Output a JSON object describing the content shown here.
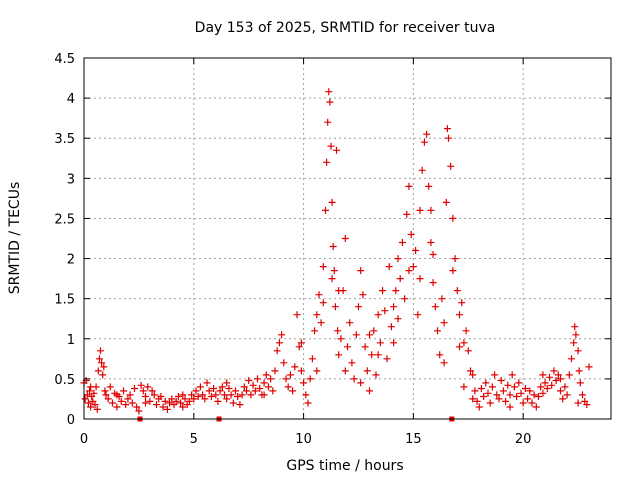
{
  "chart_data": {
    "type": "scatter",
    "title": "Day 153 of 2025, SRMTID for receiver tuva",
    "xlabel": "GPS time / hours",
    "ylabel": "SRMTID / TECUs",
    "xlim": [
      0,
      24
    ],
    "ylim": [
      0,
      4.5
    ],
    "x_ticks": [
      0,
      5,
      10,
      15,
      20
    ],
    "x_tick_labels": [
      "0",
      "5",
      "10",
      "15",
      "20"
    ],
    "y_ticks": [
      0,
      0.5,
      1,
      1.5,
      2,
      2.5,
      3,
      3.5,
      4,
      4.5
    ],
    "y_tick_labels": [
      "0",
      "0.5",
      "1",
      "1.5",
      "2",
      "2.5",
      "3",
      "3.5",
      "4",
      "4.5"
    ],
    "grid": true,
    "marker": "+",
    "color": "#e00000",
    "series": [
      {
        "name": "SRMTID",
        "points": [
          [
            0.0,
            0.45
          ],
          [
            0.05,
            0.25
          ],
          [
            0.1,
            0.48
          ],
          [
            0.15,
            0.3
          ],
          [
            0.2,
            0.2
          ],
          [
            0.25,
            0.35
          ],
          [
            0.3,
            0.15
          ],
          [
            0.35,
            0.28
          ],
          [
            0.4,
            0.22
          ],
          [
            0.45,
            0.32
          ],
          [
            0.5,
            0.18
          ],
          [
            0.55,
            0.4
          ],
          [
            0.6,
            0.12
          ],
          [
            0.65,
            0.6
          ],
          [
            0.7,
            0.75
          ],
          [
            0.75,
            0.85
          ],
          [
            0.8,
            0.7
          ],
          [
            0.85,
            0.55
          ],
          [
            0.9,
            0.65
          ],
          [
            0.95,
            0.35
          ],
          [
            1.0,
            0.3
          ],
          [
            1.1,
            0.25
          ],
          [
            1.2,
            0.4
          ],
          [
            1.3,
            0.2
          ],
          [
            1.4,
            0.32
          ],
          [
            1.5,
            0.15
          ],
          [
            1.6,
            0.28
          ],
          [
            1.7,
            0.22
          ],
          [
            1.8,
            0.35
          ],
          [
            1.9,
            0.18
          ],
          [
            2.0,
            0.25
          ],
          [
            2.1,
            0.3
          ],
          [
            2.2,
            0.2
          ],
          [
            2.3,
            0.38
          ],
          [
            2.4,
            0.15
          ],
          [
            2.5,
            0.1
          ],
          [
            2.6,
            0.42
          ],
          [
            2.7,
            0.35
          ],
          [
            2.8,
            0.28
          ],
          [
            2.9,
            0.4
          ],
          [
            3.0,
            0.22
          ],
          [
            3.1,
            0.35
          ],
          [
            3.2,
            0.3
          ],
          [
            3.3,
            0.18
          ],
          [
            3.4,
            0.25
          ],
          [
            3.5,
            0.28
          ],
          [
            3.6,
            0.15
          ],
          [
            3.7,
            0.22
          ],
          [
            3.8,
            0.12
          ],
          [
            3.9,
            0.2
          ],
          [
            4.0,
            0.25
          ],
          [
            4.1,
            0.18
          ],
          [
            4.2,
            0.22
          ],
          [
            4.3,
            0.28
          ],
          [
            4.4,
            0.2
          ],
          [
            4.5,
            0.3
          ],
          [
            4.6,
            0.25
          ],
          [
            4.7,
            0.18
          ],
          [
            4.8,
            0.22
          ],
          [
            4.9,
            0.3
          ],
          [
            5.0,
            0.25
          ],
          [
            5.1,
            0.35
          ],
          [
            5.2,
            0.28
          ],
          [
            5.3,
            0.4
          ],
          [
            5.4,
            0.3
          ],
          [
            5.5,
            0.25
          ],
          [
            5.6,
            0.45
          ],
          [
            5.7,
            0.35
          ],
          [
            5.8,
            0.28
          ],
          [
            5.9,
            0.38
          ],
          [
            6.0,
            0.3
          ],
          [
            6.1,
            0.22
          ],
          [
            6.2,
            0.35
          ],
          [
            6.3,
            0.4
          ],
          [
            6.4,
            0.3
          ],
          [
            6.5,
            0.25
          ],
          [
            6.6,
            0.38
          ],
          [
            6.7,
            0.3
          ],
          [
            6.8,
            0.2
          ],
          [
            6.9,
            0.35
          ],
          [
            7.0,
            0.28
          ],
          [
            7.1,
            0.18
          ],
          [
            7.2,
            0.3
          ],
          [
            7.3,
            0.4
          ],
          [
            7.4,
            0.35
          ],
          [
            7.5,
            0.48
          ],
          [
            7.6,
            0.3
          ],
          [
            7.7,
            0.42
          ],
          [
            7.8,
            0.35
          ],
          [
            7.9,
            0.5
          ],
          [
            8.0,
            0.38
          ],
          [
            8.1,
            0.3
          ],
          [
            8.2,
            0.45
          ],
          [
            8.3,
            0.55
          ],
          [
            8.4,
            0.4
          ],
          [
            8.5,
            0.5
          ],
          [
            8.6,
            0.35
          ],
          [
            8.7,
            0.6
          ],
          [
            8.8,
            0.85
          ],
          [
            8.9,
            0.95
          ],
          [
            9.0,
            1.05
          ],
          [
            9.1,
            0.7
          ],
          [
            9.2,
            0.5
          ],
          [
            9.3,
            0.4
          ],
          [
            9.4,
            0.55
          ],
          [
            9.5,
            0.35
          ],
          [
            9.6,
            0.65
          ],
          [
            9.7,
            1.3
          ],
          [
            9.8,
            0.9
          ],
          [
            9.9,
            0.6
          ],
          [
            10.0,
            0.45
          ],
          [
            10.1,
            0.3
          ],
          [
            10.2,
            0.2
          ],
          [
            10.3,
            0.5
          ],
          [
            10.4,
            0.75
          ],
          [
            10.5,
            1.1
          ],
          [
            10.6,
            1.3
          ],
          [
            10.7,
            1.55
          ],
          [
            10.8,
            1.2
          ],
          [
            10.9,
            1.9
          ],
          [
            11.0,
            2.6
          ],
          [
            11.05,
            3.2
          ],
          [
            11.1,
            3.7
          ],
          [
            11.15,
            4.08
          ],
          [
            11.2,
            3.95
          ],
          [
            11.25,
            3.4
          ],
          [
            11.3,
            2.7
          ],
          [
            11.35,
            2.15
          ],
          [
            11.4,
            1.85
          ],
          [
            11.45,
            1.4
          ],
          [
            11.5,
            3.35
          ],
          [
            11.55,
            1.1
          ],
          [
            11.6,
            0.8
          ],
          [
            11.7,
            1.0
          ],
          [
            11.8,
            1.6
          ],
          [
            11.9,
            2.25
          ],
          [
            12.0,
            0.9
          ],
          [
            12.1,
            1.2
          ],
          [
            12.2,
            0.7
          ],
          [
            12.3,
            0.5
          ],
          [
            12.4,
            1.05
          ],
          [
            12.5,
            1.4
          ],
          [
            12.6,
            1.85
          ],
          [
            12.7,
            1.55
          ],
          [
            12.8,
            0.9
          ],
          [
            12.9,
            0.6
          ],
          [
            13.0,
            0.35
          ],
          [
            13.1,
            0.8
          ],
          [
            13.2,
            1.1
          ],
          [
            13.3,
            0.55
          ],
          [
            13.4,
            1.3
          ],
          [
            13.5,
            0.95
          ],
          [
            13.6,
            1.6
          ],
          [
            13.7,
            1.35
          ],
          [
            13.8,
            0.75
          ],
          [
            13.9,
            1.9
          ],
          [
            14.0,
            1.15
          ],
          [
            14.1,
            1.4
          ],
          [
            14.2,
            1.6
          ],
          [
            14.3,
            2.0
          ],
          [
            14.4,
            1.75
          ],
          [
            14.5,
            2.2
          ],
          [
            14.6,
            1.5
          ],
          [
            14.7,
            2.55
          ],
          [
            14.8,
            2.9
          ],
          [
            14.9,
            2.3
          ],
          [
            15.0,
            1.9
          ],
          [
            15.1,
            2.1
          ],
          [
            15.2,
            1.3
          ],
          [
            15.3,
            2.6
          ],
          [
            15.4,
            3.1
          ],
          [
            15.5,
            3.45
          ],
          [
            15.6,
            3.55
          ],
          [
            15.7,
            2.9
          ],
          [
            15.8,
            2.2
          ],
          [
            15.9,
            1.7
          ],
          [
            16.0,
            1.4
          ],
          [
            16.1,
            1.1
          ],
          [
            16.2,
            0.8
          ],
          [
            16.3,
            1.5
          ],
          [
            16.4,
            1.2
          ],
          [
            16.5,
            2.7
          ],
          [
            16.55,
            3.62
          ],
          [
            16.6,
            3.5
          ],
          [
            16.7,
            3.15
          ],
          [
            16.8,
            2.5
          ],
          [
            16.9,
            2.0
          ],
          [
            17.0,
            1.6
          ],
          [
            17.1,
            1.3
          ],
          [
            17.2,
            1.45
          ],
          [
            17.3,
            0.95
          ],
          [
            17.4,
            1.1
          ],
          [
            17.5,
            0.85
          ],
          [
            17.6,
            0.6
          ],
          [
            17.7,
            0.55
          ],
          [
            17.8,
            0.35
          ],
          [
            17.9,
            0.22
          ],
          [
            18.0,
            0.15
          ],
          [
            18.1,
            0.38
          ],
          [
            18.2,
            0.28
          ],
          [
            18.3,
            0.45
          ],
          [
            18.4,
            0.32
          ],
          [
            18.5,
            0.2
          ],
          [
            18.6,
            0.4
          ],
          [
            18.7,
            0.55
          ],
          [
            18.8,
            0.3
          ],
          [
            18.9,
            0.25
          ],
          [
            19.0,
            0.48
          ],
          [
            19.1,
            0.35
          ],
          [
            19.2,
            0.22
          ],
          [
            19.3,
            0.42
          ],
          [
            19.4,
            0.3
          ],
          [
            19.5,
            0.55
          ],
          [
            19.6,
            0.4
          ],
          [
            19.7,
            0.28
          ],
          [
            19.8,
            0.45
          ],
          [
            19.9,
            0.32
          ],
          [
            20.0,
            0.2
          ],
          [
            20.1,
            0.38
          ],
          [
            20.2,
            0.25
          ],
          [
            20.3,
            0.35
          ],
          [
            20.4,
            0.2
          ],
          [
            20.5,
            0.3
          ],
          [
            20.6,
            0.15
          ],
          [
            20.7,
            0.28
          ],
          [
            20.8,
            0.4
          ],
          [
            20.9,
            0.32
          ],
          [
            21.0,
            0.45
          ],
          [
            21.1,
            0.38
          ],
          [
            21.2,
            0.52
          ],
          [
            21.3,
            0.42
          ],
          [
            21.4,
            0.6
          ],
          [
            21.5,
            0.48
          ],
          [
            21.6,
            0.55
          ],
          [
            21.7,
            0.35
          ],
          [
            21.8,
            0.25
          ],
          [
            21.9,
            0.4
          ],
          [
            22.0,
            0.3
          ],
          [
            22.1,
            0.55
          ],
          [
            22.2,
            0.75
          ],
          [
            22.3,
            0.95
          ],
          [
            22.35,
            1.15
          ],
          [
            22.4,
            1.05
          ],
          [
            22.5,
            0.85
          ],
          [
            22.55,
            0.6
          ],
          [
            22.6,
            0.45
          ],
          [
            22.7,
            0.3
          ],
          [
            22.8,
            0.22
          ],
          [
            22.9,
            0.18
          ],
          [
            23.0,
            0.65
          ],
          [
            0.3,
            0.4
          ],
          [
            1.5,
            0.3
          ],
          [
            2.8,
            0.2
          ],
          [
            4.5,
            0.15
          ],
          [
            6.5,
            0.45
          ],
          [
            8.2,
            0.3
          ],
          [
            9.9,
            0.95
          ],
          [
            10.6,
            0.6
          ],
          [
            11.3,
            1.75
          ],
          [
            11.9,
            0.6
          ],
          [
            12.6,
            0.45
          ],
          [
            13.4,
            0.8
          ],
          [
            14.1,
            0.95
          ],
          [
            14.8,
            1.85
          ],
          [
            15.3,
            1.75
          ],
          [
            15.9,
            2.05
          ],
          [
            16.4,
            0.7
          ],
          [
            17.1,
            0.9
          ],
          [
            17.7,
            0.25
          ],
          [
            19.4,
            0.15
          ],
          [
            20.9,
            0.55
          ],
          [
            21.7,
            0.5
          ],
          [
            22.5,
            0.2
          ],
          [
            10.9,
            1.45
          ],
          [
            11.6,
            1.6
          ],
          [
            13.0,
            1.05
          ],
          [
            14.3,
            1.25
          ],
          [
            15.8,
            2.6
          ],
          [
            16.8,
            1.85
          ],
          [
            17.3,
            0.4
          ]
        ]
      }
    ],
    "zero_markers": [
      2.55,
      6.15,
      16.75
    ]
  }
}
